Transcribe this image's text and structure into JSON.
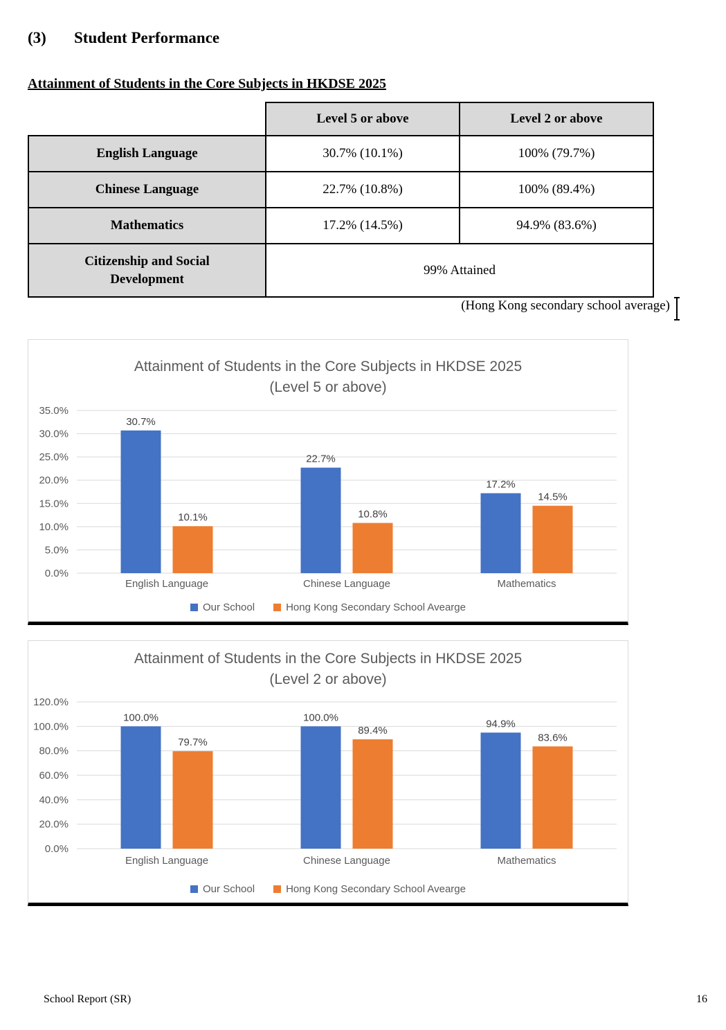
{
  "page": {
    "heading_number": "(3)",
    "heading_title": "Student Performance",
    "subheading": "Attainment of Students in the Core Subjects in HKDSE 2025",
    "hk_average_note": "(Hong Kong secondary school average)",
    "footer_left": "School Report (SR)",
    "footer_page_number": "16"
  },
  "colors": {
    "our_school": "#4472C4",
    "hk_average": "#ED7D31",
    "chart_text": "#595959",
    "data_label_text": "#404040",
    "gridline": "#D9D9D9",
    "table_header_fill": "#D9D9D9"
  },
  "table": {
    "column_headers": [
      "Level 5 or above",
      "Level 2 or above"
    ],
    "rows": [
      {
        "label": "English Language",
        "level5": "30.7% (10.1%)",
        "level2": "100% (79.7%)"
      },
      {
        "label": "Chinese Language",
        "level5": "22.7% (10.8%)",
        "level2": "100% (89.4%)"
      },
      {
        "label": "Mathematics",
        "level5": "17.2% (14.5%)",
        "level2": "94.9% (83.6%)"
      }
    ],
    "merged_row": {
      "label": "Citizenship and Social Development",
      "value": "99% Attained"
    }
  },
  "chart_data": [
    {
      "type": "bar",
      "title": "Attainment of Students in the Core Subjects in HKDSE 2025",
      "subtitle": "(Level 5 or above)",
      "categories": [
        "English Language",
        "Chinese Language",
        "Mathematics"
      ],
      "series": [
        {
          "name": "Our School",
          "color": "#4472C4",
          "values": [
            30.7,
            22.7,
            17.2
          ],
          "data_labels": [
            "30.7%",
            "22.7%",
            "17.2%"
          ]
        },
        {
          "name": "Hong Kong Secondary School Avearge",
          "color": "#ED7D31",
          "values": [
            10.1,
            10.8,
            14.5
          ],
          "data_labels": [
            "10.1%",
            "10.8%",
            "14.5%"
          ]
        }
      ],
      "ylim": [
        0,
        35
      ],
      "ytick_values": [
        0,
        5,
        10,
        15,
        20,
        25,
        30,
        35
      ],
      "ytick_labels": [
        "0.0%",
        "5.0%",
        "10.0%",
        "15.0%",
        "20.0%",
        "25.0%",
        "30.0%",
        "35.0%"
      ],
      "grid": true,
      "legend_position": "bottom"
    },
    {
      "type": "bar",
      "title": "Attainment of Students in the Core Subjects in HKDSE 2025",
      "subtitle": "(Level 2 or above)",
      "categories": [
        "English Language",
        "Chinese Language",
        "Mathematics"
      ],
      "series": [
        {
          "name": "Our School",
          "color": "#4472C4",
          "values": [
            100.0,
            100.0,
            94.9
          ],
          "data_labels": [
            "100.0%",
            "100.0%",
            "94.9%"
          ]
        },
        {
          "name": "Hong Kong Secondary School Avearge",
          "color": "#ED7D31",
          "values": [
            79.7,
            89.4,
            83.6
          ],
          "data_labels": [
            "79.7%",
            "89.4%",
            "83.6%"
          ]
        }
      ],
      "ylim": [
        0,
        120
      ],
      "ytick_values": [
        0,
        20,
        40,
        60,
        80,
        100,
        120
      ],
      "ytick_labels": [
        "0.0%",
        "20.0%",
        "40.0%",
        "60.0%",
        "80.0%",
        "100.0%",
        "120.0%"
      ],
      "grid": true,
      "legend_position": "bottom"
    }
  ]
}
